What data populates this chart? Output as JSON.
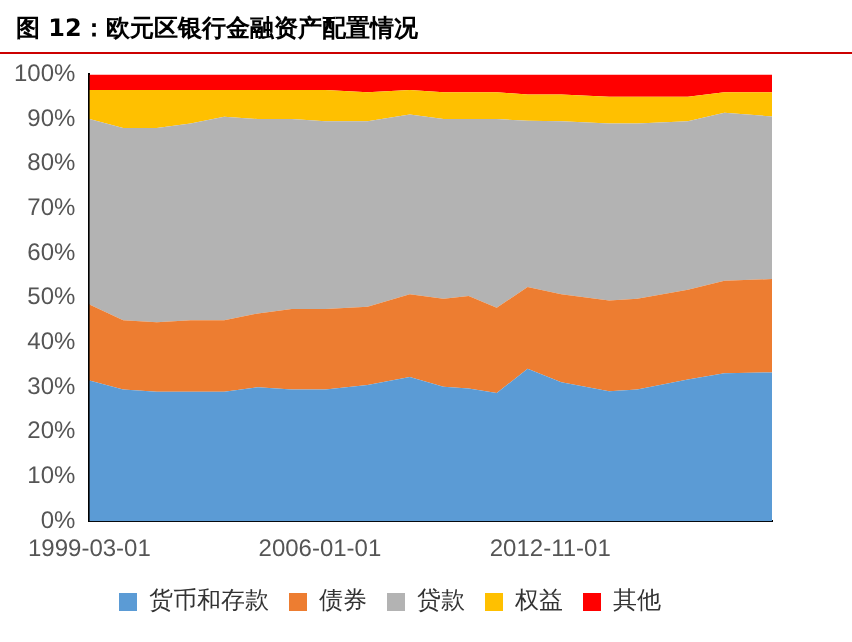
{
  "chart_data": {
    "type": "area",
    "title": "图 12：欧元区银行金融资产配置情况",
    "stacked": true,
    "legend": "bottom",
    "grid": false,
    "x": [
      "1999-03",
      "2000-03",
      "2001-03",
      "2002-03",
      "2003-03",
      "2004-03",
      "2005-03",
      "2006-03",
      "2007-06",
      "2008-09",
      "2009-09",
      "2010-06",
      "2011-04",
      "2012-03",
      "2013-03",
      "2014-08",
      "2015-06",
      "2016-12",
      "2018-01",
      "2019-06"
    ],
    "xlim": [
      "1999-03-01",
      "2019-06-01"
    ],
    "xticks": [
      "1999-03-01",
      "2006-01-01",
      "2012-11-01"
    ],
    "ylim": [
      0,
      100
    ],
    "yticks": [
      {
        "value": 0,
        "label": "0%"
      },
      {
        "value": 10,
        "label": "10%"
      },
      {
        "value": 20,
        "label": "20%"
      },
      {
        "value": 30,
        "label": "30%"
      },
      {
        "value": 40,
        "label": "40%"
      },
      {
        "value": 50,
        "label": "50%"
      },
      {
        "value": 60,
        "label": "60%"
      },
      {
        "value": 70,
        "label": "70%"
      },
      {
        "value": 80,
        "label": "80%"
      },
      {
        "value": 90,
        "label": "90%"
      },
      {
        "value": 100,
        "label": "100%"
      }
    ],
    "series": [
      {
        "name": "货币和存款",
        "color": "#5b9bd5",
        "values": [
          31.5,
          29.5,
          29,
          29,
          29,
          30,
          29.5,
          29.5,
          30.5,
          32.3,
          30.1,
          29.7,
          28.7,
          34.1,
          31.1,
          29.1,
          29.5,
          31.7,
          33.1,
          33.3
        ]
      },
      {
        "name": "债券",
        "color": "#ed7d31",
        "values": [
          17,
          15.5,
          15.5,
          16,
          16,
          16.5,
          18,
          18,
          17.5,
          18.5,
          19.7,
          20.7,
          19.1,
          18.3,
          19.7,
          20.3,
          20.3,
          20.1,
          20.7,
          20.9
        ]
      },
      {
        "name": "贷款",
        "color": "#b3b3b3",
        "values": [
          41.5,
          43,
          43.5,
          44,
          45.5,
          43.5,
          42.5,
          42,
          41.5,
          40.2,
          40.2,
          39.6,
          42.2,
          37.2,
          38.7,
          39.6,
          39.2,
          37.7,
          37.6,
          36.4
        ]
      },
      {
        "name": "权益",
        "color": "#ffc000",
        "values": [
          6.5,
          8.5,
          8.5,
          7.5,
          6,
          6.5,
          6.5,
          7,
          6.5,
          5.5,
          6,
          6,
          6,
          5.9,
          6,
          6,
          6,
          5.5,
          4.6,
          5.4
        ]
      },
      {
        "name": "其他",
        "color": "#ff0000",
        "values": [
          3.5,
          3.5,
          3.5,
          3.5,
          3.5,
          3.5,
          3.5,
          3.5,
          4,
          3.5,
          4,
          4,
          4,
          4.5,
          4.5,
          5,
          5,
          5,
          4,
          4
        ]
      }
    ]
  }
}
